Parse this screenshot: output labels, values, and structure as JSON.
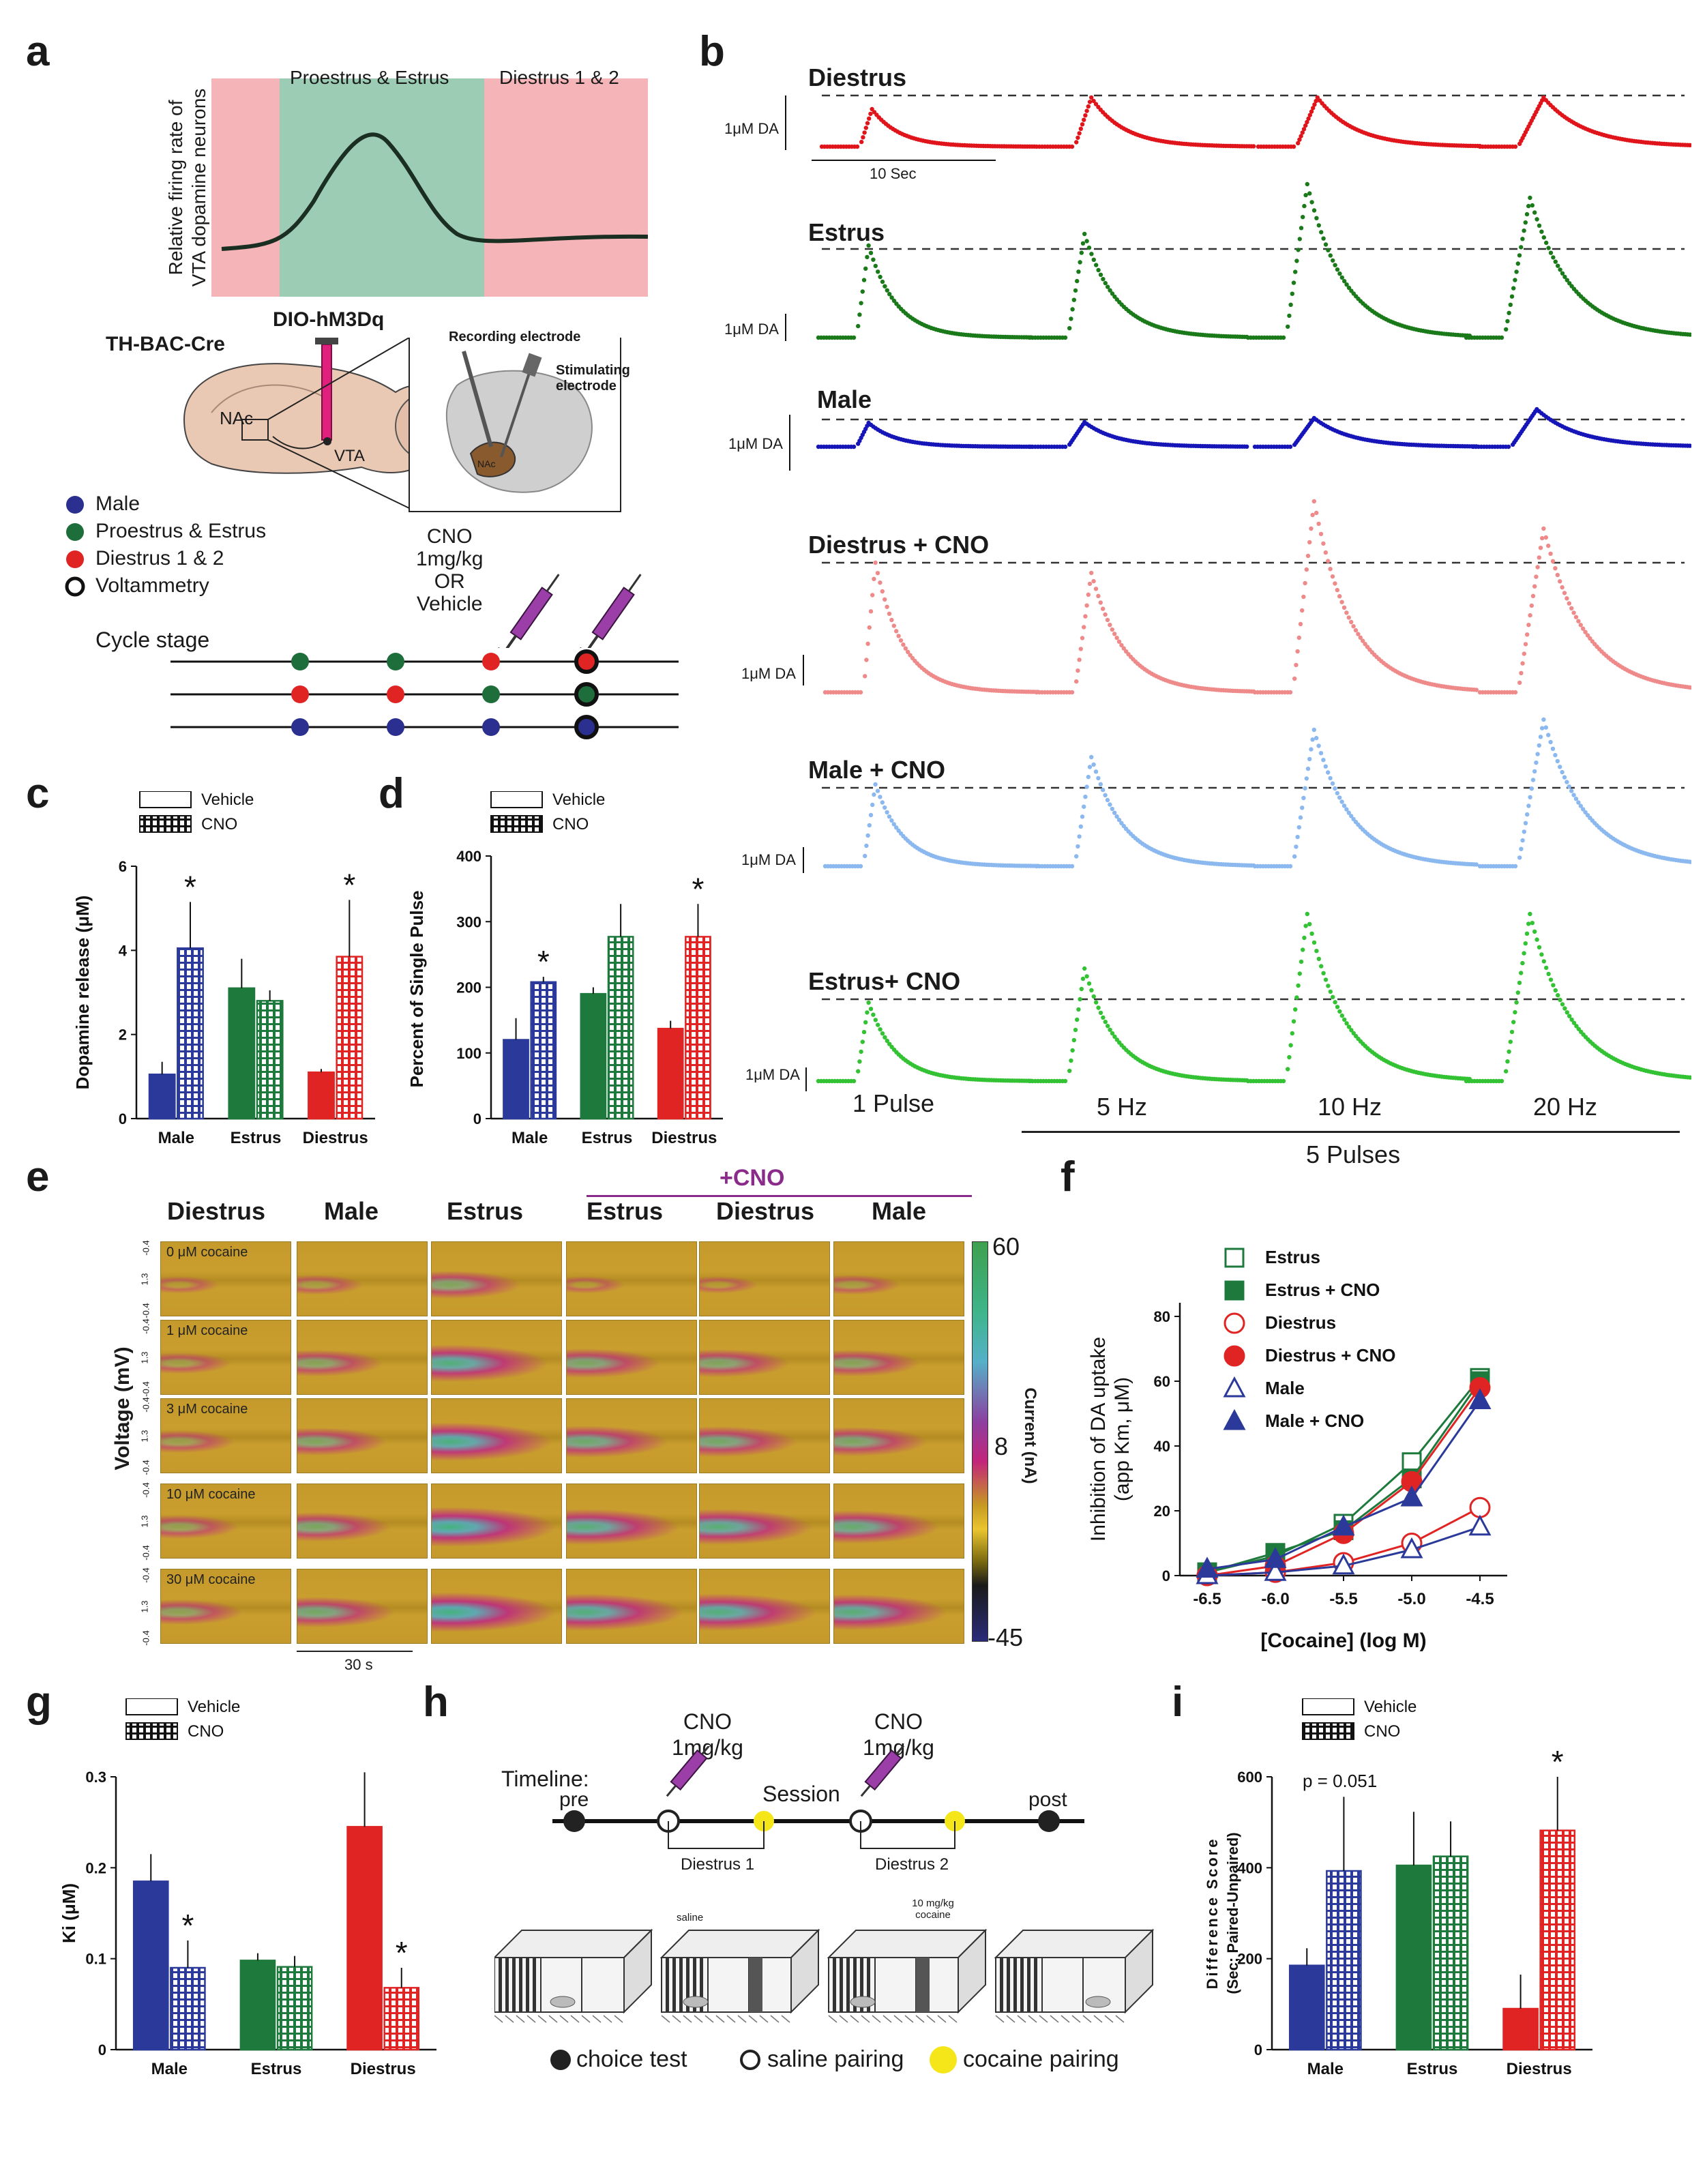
{
  "panel_letters": [
    "a",
    "b",
    "c",
    "d",
    "e",
    "f",
    "g",
    "h",
    "i"
  ],
  "panel_a": {
    "top_labels": [
      "Proestrus & Estrus",
      "Diestrus 1 & 2"
    ],
    "y_label_line1": "Relative firing rate of",
    "y_label_line2": "VTA dopamine neurons",
    "virus": "DIO-hM3Dq",
    "mouse_line": "TH-BAC-Cre",
    "brain_labels": [
      "NAc",
      "VTA"
    ],
    "inset_labels": [
      "Recording electrode",
      "Stimulating electrode",
      "NAc"
    ],
    "legend": [
      {
        "label": "Male",
        "color": "#2b2f8f"
      },
      {
        "label": "Proestrus & Estrus",
        "color": "#1e6e3c"
      },
      {
        "label": "Diestrus 1 & 2",
        "color": "#e02424"
      },
      {
        "label": "Voltammetry",
        "color": "#ffffff"
      }
    ],
    "injection_text": [
      "CNO",
      "1mg/kg",
      "OR",
      "Vehicle"
    ],
    "cycle_stage": "Cycle stage",
    "timeline_rows": [
      [
        "#1e6e3c",
        "#1e6e3c",
        "#e02424",
        "#e02424"
      ],
      [
        "#e02424",
        "#e02424",
        "#1e6e3c",
        "#1e6e3c"
      ],
      [
        "#2b2f8f",
        "#2b2f8f",
        "#2b2f8f",
        "#2b2f8f"
      ]
    ]
  },
  "panel_b": {
    "rows": [
      {
        "title": "Diestrus",
        "da": "1μM DA",
        "color": "#e0151b"
      },
      {
        "title": "Estrus",
        "da": "1μM DA",
        "color": "#1a7a1a"
      },
      {
        "title": "Male",
        "da": "1μM DA",
        "color": "#1616b8"
      },
      {
        "title": "Diestrus + CNO",
        "da": "1μM DA",
        "color": "#ef8a8a"
      },
      {
        "title": "Male + CNO",
        "da": "1μM DA",
        "color": "#8ab8ef"
      },
      {
        "title": "Estrus+ CNO",
        "da": "1μM DA",
        "color": "#33c233"
      }
    ],
    "scale_label": "10 Sec",
    "stim_labels": [
      "1 Pulse",
      "5 Hz",
      "10 Hz",
      "20 Hz"
    ],
    "group_label": "5 Pulses"
  },
  "legend_vehicle": "Vehicle",
  "legend_cno": "CNO",
  "chart_data": [
    {
      "type": "bar",
      "panel": "c",
      "ylabel": "Dopamine release (μM)",
      "categories": [
        "Male",
        "Estrus",
        "Diestrus"
      ],
      "ylim": [
        0,
        6
      ],
      "yticks": [
        0,
        2,
        4,
        6
      ],
      "series": [
        {
          "name": "Vehicle",
          "values": [
            1.05,
            3.1,
            1.1
          ],
          "errors": [
            0.3,
            0.7,
            0.08
          ]
        },
        {
          "name": "CNO",
          "values": [
            4.05,
            2.8,
            3.85
          ],
          "errors": [
            1.1,
            0.25,
            1.35
          ]
        }
      ],
      "colors": [
        "#2b3a9a",
        "#1e7a3c",
        "#e02424"
      ],
      "significance": [
        "*",
        "",
        "*"
      ]
    },
    {
      "type": "bar",
      "panel": "d",
      "ylabel": "Percent of Single Pulse",
      "categories": [
        "Male",
        "Estrus",
        "Diestrus"
      ],
      "ylim": [
        0,
        400
      ],
      "yticks": [
        0,
        100,
        200,
        300,
        400
      ],
      "series": [
        {
          "name": "Vehicle",
          "values": [
            120,
            190,
            137
          ],
          "errors": [
            33,
            10,
            12
          ]
        },
        {
          "name": "CNO",
          "values": [
            208,
            277,
            277
          ],
          "errors": [
            8,
            50,
            50
          ]
        }
      ],
      "colors": [
        "#2b3a9a",
        "#1e7a3c",
        "#e02424"
      ],
      "significance": [
        "*",
        "",
        "*"
      ]
    },
    {
      "type": "line",
      "panel": "f",
      "xlabel": "[Cocaine] (log M)",
      "ylabel_line1": "Inhibition of DA uptake",
      "ylabel_line2": "(app Km, μM)",
      "x": [
        -6.5,
        -6.0,
        -5.5,
        -5.0,
        -4.5
      ],
      "xticks": [
        "-6.5",
        "-6.0",
        "-5.5",
        "-5.0",
        "-4.5"
      ],
      "ylim": [
        0,
        80
      ],
      "yticks": [
        0,
        20,
        40,
        60,
        80
      ],
      "series": [
        {
          "name": "Estrus",
          "values": [
            1,
            6,
            16,
            35,
            61
          ],
          "color": "#1e7a3c",
          "marker": "square-open"
        },
        {
          "name": "Estrus + CNO",
          "values": [
            1,
            7,
            14,
            30,
            60
          ],
          "color": "#1e7a3c",
          "marker": "square-filled"
        },
        {
          "name": "Diestrus",
          "values": [
            0,
            1,
            4,
            10,
            21
          ],
          "color": "#e02424",
          "marker": "circle-open"
        },
        {
          "name": "Diestrus + CNO",
          "values": [
            0,
            3,
            13,
            29,
            58
          ],
          "color": "#e02424",
          "marker": "circle-filled"
        },
        {
          "name": "Male",
          "values": [
            0,
            1,
            3,
            8,
            15
          ],
          "color": "#2b3a9a",
          "marker": "triangle-open"
        },
        {
          "name": "Male + CNO",
          "values": [
            2,
            5,
            15,
            24,
            54
          ],
          "color": "#2b3a9a",
          "marker": "triangle-filled"
        }
      ]
    },
    {
      "type": "bar",
      "panel": "g",
      "ylabel": "Ki (μM)",
      "categories": [
        "Male",
        "Estrus",
        "Diestrus"
      ],
      "ylim": [
        0,
        0.3
      ],
      "yticks": [
        "0",
        "0.1",
        "0.2",
        "0.3"
      ],
      "series": [
        {
          "name": "Vehicle",
          "values": [
            0.185,
            0.098,
            0.245
          ],
          "errors": [
            0.03,
            0.008,
            0.06
          ]
        },
        {
          "name": "CNO",
          "values": [
            0.09,
            0.091,
            0.068
          ],
          "errors": [
            0.03,
            0.012,
            0.022
          ]
        }
      ],
      "colors": [
        "#2b3a9a",
        "#1e7a3c",
        "#e02424"
      ],
      "significance": [
        "*",
        "",
        "*"
      ]
    },
    {
      "type": "bar",
      "panel": "i",
      "ylabel_line1": "Difference Score",
      "ylabel_line2": "(Sec; Paired-Unpaired)",
      "categories": [
        "Male",
        "Estrus",
        "Diestrus"
      ],
      "ylim": [
        0,
        600
      ],
      "yticks": [
        0,
        200,
        400,
        600
      ],
      "series": [
        {
          "name": "Vehicle",
          "values": [
            185,
            405,
            90
          ],
          "errors": [
            38,
            118,
            75
          ]
        },
        {
          "name": "CNO",
          "values": [
            393,
            425,
            482
          ],
          "errors": [
            163,
            77,
            118
          ]
        }
      ],
      "colors": [
        "#2b3a9a",
        "#1e7a3c",
        "#e02424"
      ],
      "significance": [
        "",
        "",
        "*"
      ],
      "annotation": "p = 0.051"
    }
  ],
  "panel_e": {
    "columns": [
      "Diestrus",
      "Male",
      "Estrus",
      "Estrus",
      "Diestrus",
      "Male"
    ],
    "cno_header": "+CNO",
    "rows": [
      "0 μM cocaine",
      "1 μM cocaine",
      "3 μM cocaine",
      "10 μM cocaine",
      "30 μM cocaine"
    ],
    "y_label": "Voltage (mV)",
    "volt_ticks": [
      "-0.4",
      "1.3",
      "-0.4"
    ],
    "colorbar_label": "Current (nA)",
    "colorbar_ticks": [
      "60",
      "8",
      "-45"
    ],
    "time_scale": "30 s"
  },
  "panel_h": {
    "timeline_label": "Timeline:",
    "points": [
      "pre",
      "Session",
      "post"
    ],
    "cno_label": [
      "CNO",
      "1mg/kg"
    ],
    "boxes": [
      "Diestrus 1",
      "Diestrus 2"
    ],
    "chamber_labels": [
      "saline",
      "10 mg/kg cocaine"
    ],
    "legend": [
      {
        "label": "choice test",
        "kind": "filled"
      },
      {
        "label": "saline pairing",
        "kind": "open"
      },
      {
        "label": "cocaine pairing",
        "kind": "yellow"
      }
    ]
  }
}
